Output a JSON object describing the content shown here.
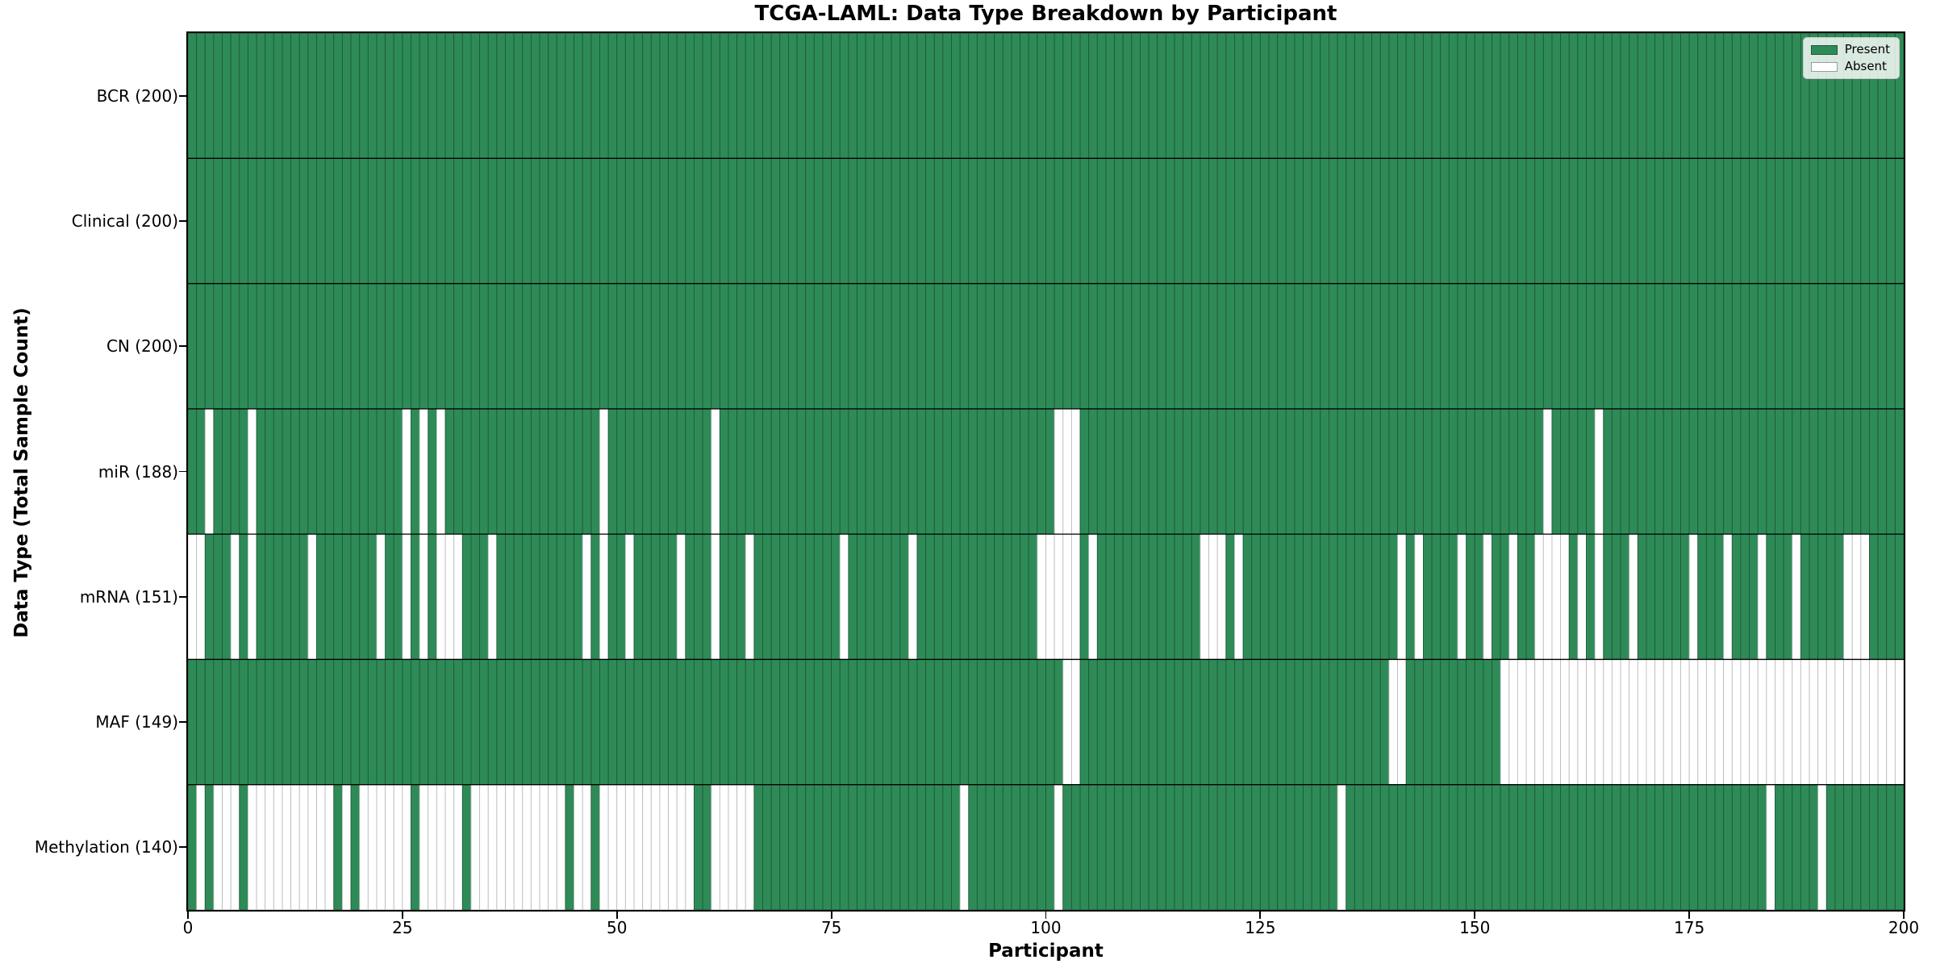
{
  "chart_data": {
    "type": "heatmap",
    "title": "TCGA-LAML: Data Type Breakdown by Participant",
    "xlabel": "Participant",
    "ylabel": "Data Type (Total Sample Count)",
    "x_range": [
      0,
      200
    ],
    "x_ticks": [
      0,
      25,
      50,
      75,
      100,
      125,
      150,
      175,
      200
    ],
    "n_participants": 200,
    "grid": false,
    "legend_position": "upper right",
    "legend": [
      {
        "label": "Present",
        "color": "#2E8B57"
      },
      {
        "label": "Absent",
        "color": "#FFFFFF"
      }
    ],
    "colors": {
      "present": "#2E8B57",
      "absent": "#FFFFFF",
      "present_edge": "#1E5A38",
      "absent_edge": "#BDBDBD",
      "row_separator": "#000000",
      "spine": "#000000"
    },
    "rows": [
      {
        "label": "BCR",
        "present_count": 200,
        "absent_participants": []
      },
      {
        "label": "Clinical",
        "present_count": 200,
        "absent_participants": []
      },
      {
        "label": "CN",
        "present_count": 200,
        "absent_participants": []
      },
      {
        "label": "miR",
        "present_count": 188,
        "absent_participants": [
          2,
          7,
          25,
          27,
          29,
          48,
          61,
          101,
          102,
          103,
          158,
          164
        ]
      },
      {
        "label": "mRNA",
        "present_count": 151,
        "absent_participants": [
          0,
          1,
          5,
          7,
          14,
          22,
          25,
          27,
          29,
          30,
          31,
          35,
          46,
          48,
          51,
          57,
          61,
          65,
          76,
          84,
          99,
          100,
          101,
          102,
          103,
          105,
          118,
          119,
          120,
          122,
          141,
          143,
          148,
          151,
          154,
          157,
          158,
          159,
          160,
          162,
          164,
          168,
          175,
          179,
          183,
          187,
          193,
          194,
          195
        ]
      },
      {
        "label": "MAF",
        "present_count": 149,
        "absent_participants": [
          102,
          103,
          140,
          141,
          153,
          154,
          155,
          156,
          157,
          158,
          159,
          160,
          161,
          162,
          163,
          164,
          165,
          166,
          167,
          168,
          169,
          170,
          171,
          172,
          173,
          174,
          175,
          176,
          177,
          178,
          179,
          180,
          181,
          182,
          183,
          184,
          185,
          186,
          187,
          188,
          189,
          190,
          191,
          192,
          193,
          194,
          195,
          196,
          197,
          198,
          199
        ]
      },
      {
        "label": "Methylation",
        "present_count": 140,
        "absent_participants": [
          1,
          3,
          4,
          5,
          7,
          8,
          9,
          10,
          11,
          12,
          13,
          14,
          15,
          16,
          18,
          20,
          21,
          22,
          23,
          24,
          25,
          27,
          28,
          29,
          30,
          31,
          33,
          34,
          35,
          36,
          37,
          38,
          39,
          40,
          41,
          42,
          43,
          45,
          46,
          48,
          49,
          50,
          51,
          52,
          53,
          54,
          55,
          56,
          57,
          58,
          61,
          62,
          63,
          64,
          65,
          90,
          101,
          134,
          184,
          190
        ]
      }
    ],
    "ytick_label_format": "{label} ({present_count})"
  }
}
